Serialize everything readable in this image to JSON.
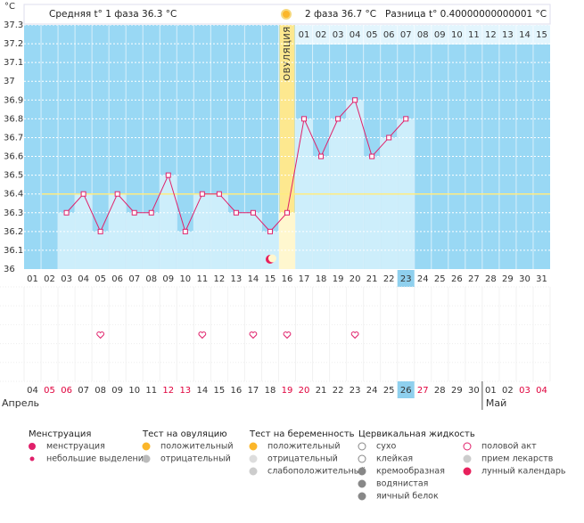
{
  "chart_data": {
    "type": "line",
    "ylabel": "°C",
    "categories": [
      "01",
      "02",
      "03",
      "04",
      "05",
      "06",
      "07",
      "08",
      "09",
      "10",
      "11",
      "12",
      "13",
      "14",
      "15",
      "16",
      "17",
      "18",
      "19",
      "20",
      "21",
      "22",
      "23",
      "24",
      "25",
      "26",
      "27",
      "28",
      "29",
      "30",
      "31"
    ],
    "values": [
      null,
      null,
      36.3,
      36.4,
      36.2,
      36.4,
      36.3,
      36.3,
      36.5,
      36.2,
      36.4,
      36.4,
      36.3,
      36.3,
      36.2,
      36.3,
      36.8,
      36.6,
      36.8,
      36.9,
      36.6,
      36.7,
      36.8,
      null,
      null,
      null,
      null,
      null,
      null,
      null,
      null
    ],
    "color": "#e0206a",
    "bar_color": "#cdeefb",
    "background": "#99d8f4",
    "ylim": [
      36,
      37.3
    ],
    "yticks": [
      36,
      36.1,
      36.2,
      36.3,
      36.4,
      36.5,
      36.6,
      36.7,
      36.8,
      36.9,
      37,
      37.1,
      37.2,
      37.3
    ],
    "grid": true,
    "cover_line": 36.4,
    "today": "23",
    "ovulation_day": "16",
    "ovulation_label": "ОВУЛЯЦИЯ",
    "intercourse_days": [
      "05",
      "11",
      "14",
      "16",
      "20"
    ],
    "lunar_day": "15"
  },
  "header": {
    "phase1": "Средняя t° 1 фаза 36.3 °C",
    "phase2": "2 фаза 36.7 °C",
    "difference": "Разница t° 0.40000000000001 °C"
  },
  "phase2_days": [
    "01",
    "02",
    "03",
    "04",
    "05",
    "06",
    "07",
    "08",
    "09",
    "10",
    "11",
    "12",
    "13",
    "14",
    "15"
  ],
  "calendar": {
    "today": "26",
    "dates": [
      {
        "label": "04",
        "weekend": false
      },
      {
        "label": "05",
        "weekend": true
      },
      {
        "label": "06",
        "weekend": true
      },
      {
        "label": "07",
        "weekend": false
      },
      {
        "label": "08",
        "weekend": false
      },
      {
        "label": "09",
        "weekend": false
      },
      {
        "label": "10",
        "weekend": false
      },
      {
        "label": "11",
        "weekend": false
      },
      {
        "label": "12",
        "weekend": true
      },
      {
        "label": "13",
        "weekend": true
      },
      {
        "label": "14",
        "weekend": false
      },
      {
        "label": "15",
        "weekend": false
      },
      {
        "label": "16",
        "weekend": false
      },
      {
        "label": "17",
        "weekend": false
      },
      {
        "label": "18",
        "weekend": false
      },
      {
        "label": "19",
        "weekend": true
      },
      {
        "label": "20",
        "weekend": true
      },
      {
        "label": "21",
        "weekend": false
      },
      {
        "label": "22",
        "weekend": false
      },
      {
        "label": "23",
        "weekend": false
      },
      {
        "label": "24",
        "weekend": false
      },
      {
        "label": "25",
        "weekend": false
      },
      {
        "label": "26",
        "weekend": true
      },
      {
        "label": "27",
        "weekend": true
      },
      {
        "label": "28",
        "weekend": false
      },
      {
        "label": "29",
        "weekend": false
      },
      {
        "label": "30",
        "weekend": false
      },
      {
        "label": "01",
        "weekend": false
      },
      {
        "label": "02",
        "weekend": false
      },
      {
        "label": "03",
        "weekend": true
      },
      {
        "label": "04",
        "weekend": true
      }
    ],
    "months": [
      "Апрель",
      "Май"
    ]
  },
  "legend": [
    {
      "title": "Менструация",
      "items": [
        "менструация",
        "небольшие выделения"
      ]
    },
    {
      "title": "Тест на овуляцию",
      "items": [
        "положительный",
        "отрицательный"
      ]
    },
    {
      "title": "Тест на беременность",
      "items": [
        "положительный",
        "отрицательный",
        "слабоположительный"
      ]
    },
    {
      "title": "Цервикальная жидкость",
      "items": [
        "сухо",
        "клейкая",
        "кремообразная",
        "водянистая",
        "яичный белок"
      ]
    },
    {
      "title": null,
      "items": [
        "половой акт",
        "прием лекарств",
        "лунный календарь"
      ]
    }
  ]
}
